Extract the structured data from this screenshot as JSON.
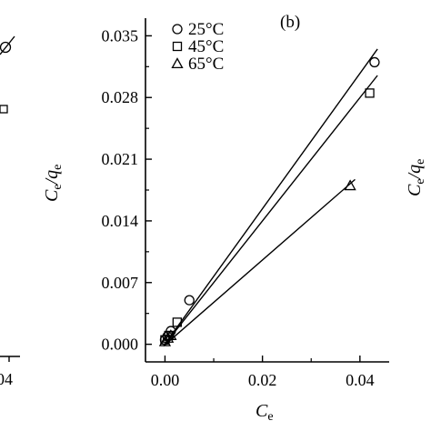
{
  "chart_data": {
    "type": "scatter",
    "panel_label": "(b)",
    "xlabel_main": "C",
    "xlabel_sub": "e",
    "ylabel_c": "C",
    "ylabel_c_sub": "e",
    "ylabel_slash": "/",
    "ylabel_q": "q",
    "ylabel_q_sub": "e",
    "right_edge_ylabel": "Ce/qe",
    "left_edge_tick": "04",
    "xlim": [
      -0.004,
      0.046
    ],
    "ylim": [
      -0.002,
      0.037
    ],
    "x_ticks": [
      {
        "value": 0.0,
        "label": "0.00"
      },
      {
        "value": 0.02,
        "label": "0.02"
      },
      {
        "value": 0.04,
        "label": "0.04"
      }
    ],
    "y_ticks": [
      {
        "value": 0.0,
        "label": "0.000"
      },
      {
        "value": 0.007,
        "label": "0.007"
      },
      {
        "value": 0.014,
        "label": "0.014"
      },
      {
        "value": 0.021,
        "label": "0.021"
      },
      {
        "value": 0.028,
        "label": "0.028"
      },
      {
        "value": 0.035,
        "label": "0.035"
      }
    ],
    "grid": false,
    "legend_position": "top-left",
    "series": [
      {
        "name": "25°C",
        "marker": "circle",
        "points": [
          [
            0.0,
            0.0005
          ],
          [
            0.0005,
            0.0009
          ],
          [
            0.0012,
            0.0015
          ],
          [
            0.005,
            0.005
          ],
          [
            0.043,
            0.032
          ]
        ],
        "fit": [
          [
            -0.0003,
            -0.0002
          ],
          [
            0.0436,
            0.0335
          ]
        ]
      },
      {
        "name": "45°C",
        "marker": "square",
        "points": [
          [
            0.0,
            0.0005
          ],
          [
            0.0008,
            0.001
          ],
          [
            0.0025,
            0.0025
          ],
          [
            0.042,
            0.0285
          ]
        ],
        "fit": [
          [
            -0.0003,
            -0.0002
          ],
          [
            0.0436,
            0.0305
          ]
        ]
      },
      {
        "name": "65°C",
        "marker": "triangle",
        "points": [
          [
            0.0,
            0.0003
          ],
          [
            0.0006,
            0.0007
          ],
          [
            0.0012,
            0.001
          ],
          [
            0.038,
            0.018
          ]
        ],
        "fit": [
          [
            -0.0003,
            -0.0002
          ],
          [
            0.039,
            0.0187
          ]
        ]
      }
    ]
  }
}
